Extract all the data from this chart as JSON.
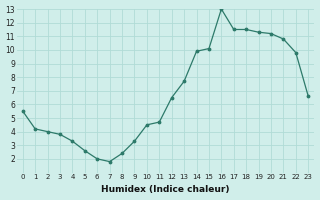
{
  "x": [
    0,
    1,
    2,
    3,
    4,
    5,
    6,
    7,
    8,
    9,
    10,
    11,
    12,
    13,
    14,
    15,
    16,
    17,
    18,
    19,
    20,
    21,
    22,
    23
  ],
  "y": [
    5.5,
    4.2,
    4.0,
    3.8,
    3.3,
    2.6,
    2.0,
    1.8,
    2.4,
    3.3,
    4.5,
    4.7,
    6.5,
    7.7,
    9.9,
    10.1,
    13.0,
    11.5,
    11.5,
    11.3,
    11.2,
    10.8,
    9.8,
    6.6
  ],
  "xlabel": "Humidex (Indice chaleur)",
  "ylim": [
    1,
    13
  ],
  "xlim": [
    -0.5,
    23.5
  ],
  "yticks": [
    2,
    3,
    4,
    5,
    6,
    7,
    8,
    9,
    10,
    11,
    12,
    13
  ],
  "xticks": [
    0,
    1,
    2,
    3,
    4,
    5,
    6,
    7,
    8,
    9,
    10,
    11,
    12,
    13,
    14,
    15,
    16,
    17,
    18,
    19,
    20,
    21,
    22,
    23
  ],
  "line_color": "#2d7a6a",
  "marker_color": "#2d7a6a",
  "bg_color": "#d0eeea",
  "grid_color": "#b0dcd6"
}
